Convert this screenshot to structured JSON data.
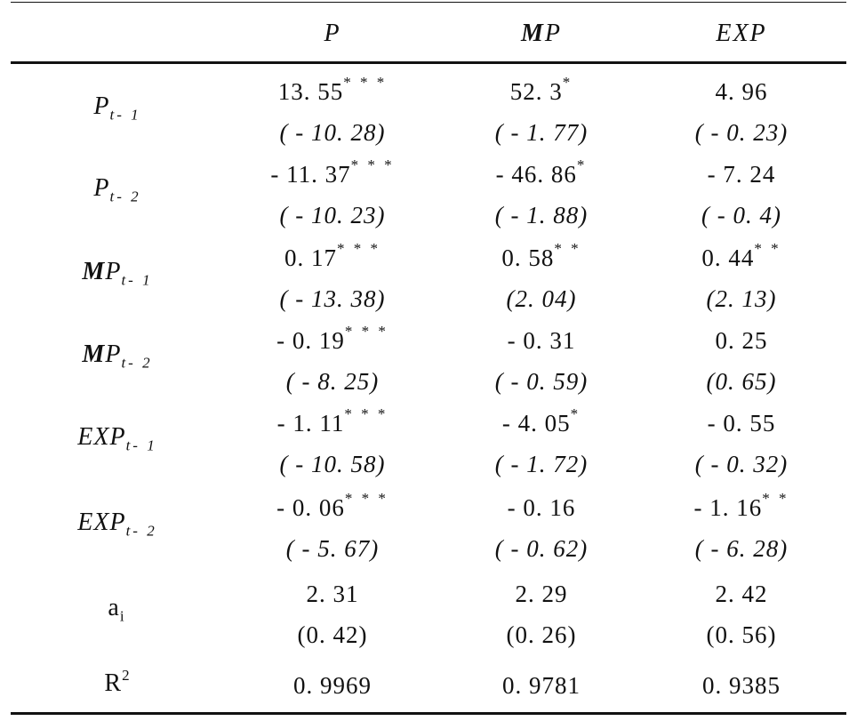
{
  "header": {
    "col1": "P",
    "col2_m": "M",
    "col2_rest": "P",
    "col3": "EXP"
  },
  "rows": [
    {
      "label_main": "P",
      "label_sub": "t- 1",
      "cells": [
        {
          "coef": "13. 55",
          "stars": "* * *",
          "paren": "( - 10. 28)"
        },
        {
          "coef": "52. 3",
          "stars": "*",
          "paren": "( - 1. 77)"
        },
        {
          "coef": "4. 96",
          "stars": "",
          "paren": "( - 0. 23)"
        }
      ]
    },
    {
      "label_main": "P",
      "label_sub": "t- 2",
      "cells": [
        {
          "coef": "- 11. 37",
          "stars": "* * *",
          "paren": "( - 10. 23)"
        },
        {
          "coef": "- 46. 86",
          "stars": "*",
          "paren": "( - 1. 88)"
        },
        {
          "coef": "- 7. 24",
          "stars": "",
          "paren": "( - 0. 4)"
        }
      ]
    },
    {
      "label_m": "M",
      "label_main": "P",
      "label_sub": "t- 1",
      "cells": [
        {
          "coef": "0. 17",
          "stars": "* * *",
          "paren": "( - 13. 38)"
        },
        {
          "coef": "0. 58",
          "stars": "* *",
          "paren": "(2. 04)"
        },
        {
          "coef": "0. 44",
          "stars": "* *",
          "paren": "(2. 13)"
        }
      ]
    },
    {
      "label_m": "M",
      "label_main": "P",
      "label_sub": "t- 2",
      "cells": [
        {
          "coef": "- 0. 19",
          "stars": "* * *",
          "paren": "( - 8. 25)"
        },
        {
          "coef": "- 0. 31",
          "stars": "",
          "paren": "( - 0. 59)"
        },
        {
          "coef": "0. 25",
          "stars": "",
          "paren": "(0. 65)"
        }
      ]
    },
    {
      "label_main": "EXP",
      "label_sub": "t- 1",
      "cells": [
        {
          "coef": "- 1. 11",
          "stars": "* * *",
          "paren": "( - 10. 58)"
        },
        {
          "coef": "- 4. 05",
          "stars": "*",
          "paren": "( - 1. 72)"
        },
        {
          "coef": "- 0. 55",
          "stars": "",
          "paren": "( - 0. 32)"
        }
      ]
    },
    {
      "label_main": "EXP",
      "label_sub": "t- 2",
      "cells": [
        {
          "coef": "- 0. 06",
          "stars": "* * *",
          "paren": "( - 5. 67)"
        },
        {
          "coef": "- 0. 16",
          "stars": "",
          "paren": "( - 0. 62)"
        },
        {
          "coef": "- 1. 16",
          "stars": "* *",
          "paren": "( - 6. 28)"
        }
      ]
    },
    {
      "label_main": "a",
      "label_sub": "i",
      "cells": [
        {
          "coef": "2. 31",
          "stars": "",
          "paren": "(0. 42)"
        },
        {
          "coef": "2. 29",
          "stars": "",
          "paren": "(0. 26)"
        },
        {
          "coef": "2. 42",
          "stars": "",
          "paren": "(0. 56)"
        }
      ]
    },
    {
      "label_main": "R",
      "label_sup": "2",
      "cells": [
        {
          "coef": "0. 9969",
          "stars": "",
          "paren": ""
        },
        {
          "coef": "0. 9781",
          "stars": "",
          "paren": ""
        },
        {
          "coef": "0. 9385",
          "stars": "",
          "paren": ""
        }
      ]
    }
  ]
}
